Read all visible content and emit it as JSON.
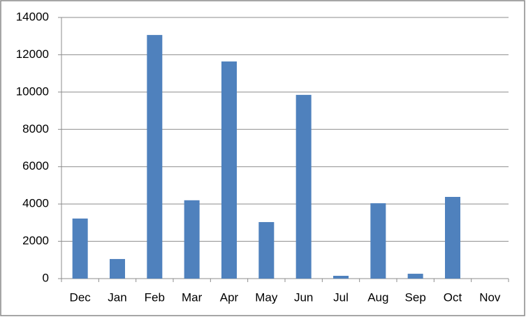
{
  "chart_data": {
    "type": "bar",
    "categories": [
      "Dec",
      "Jan",
      "Feb",
      "Mar",
      "Apr",
      "May",
      "Jun",
      "Jul",
      "Aug",
      "Sep",
      "Oct",
      "Nov"
    ],
    "values": [
      3220,
      1050,
      13060,
      4200,
      11640,
      3030,
      9850,
      150,
      4040,
      260,
      4380,
      0
    ],
    "color": "#4f81bd",
    "ylim": [
      0,
      14000
    ],
    "yticks": [
      0,
      2000,
      4000,
      6000,
      8000,
      10000,
      12000,
      14000
    ],
    "grid": true
  }
}
